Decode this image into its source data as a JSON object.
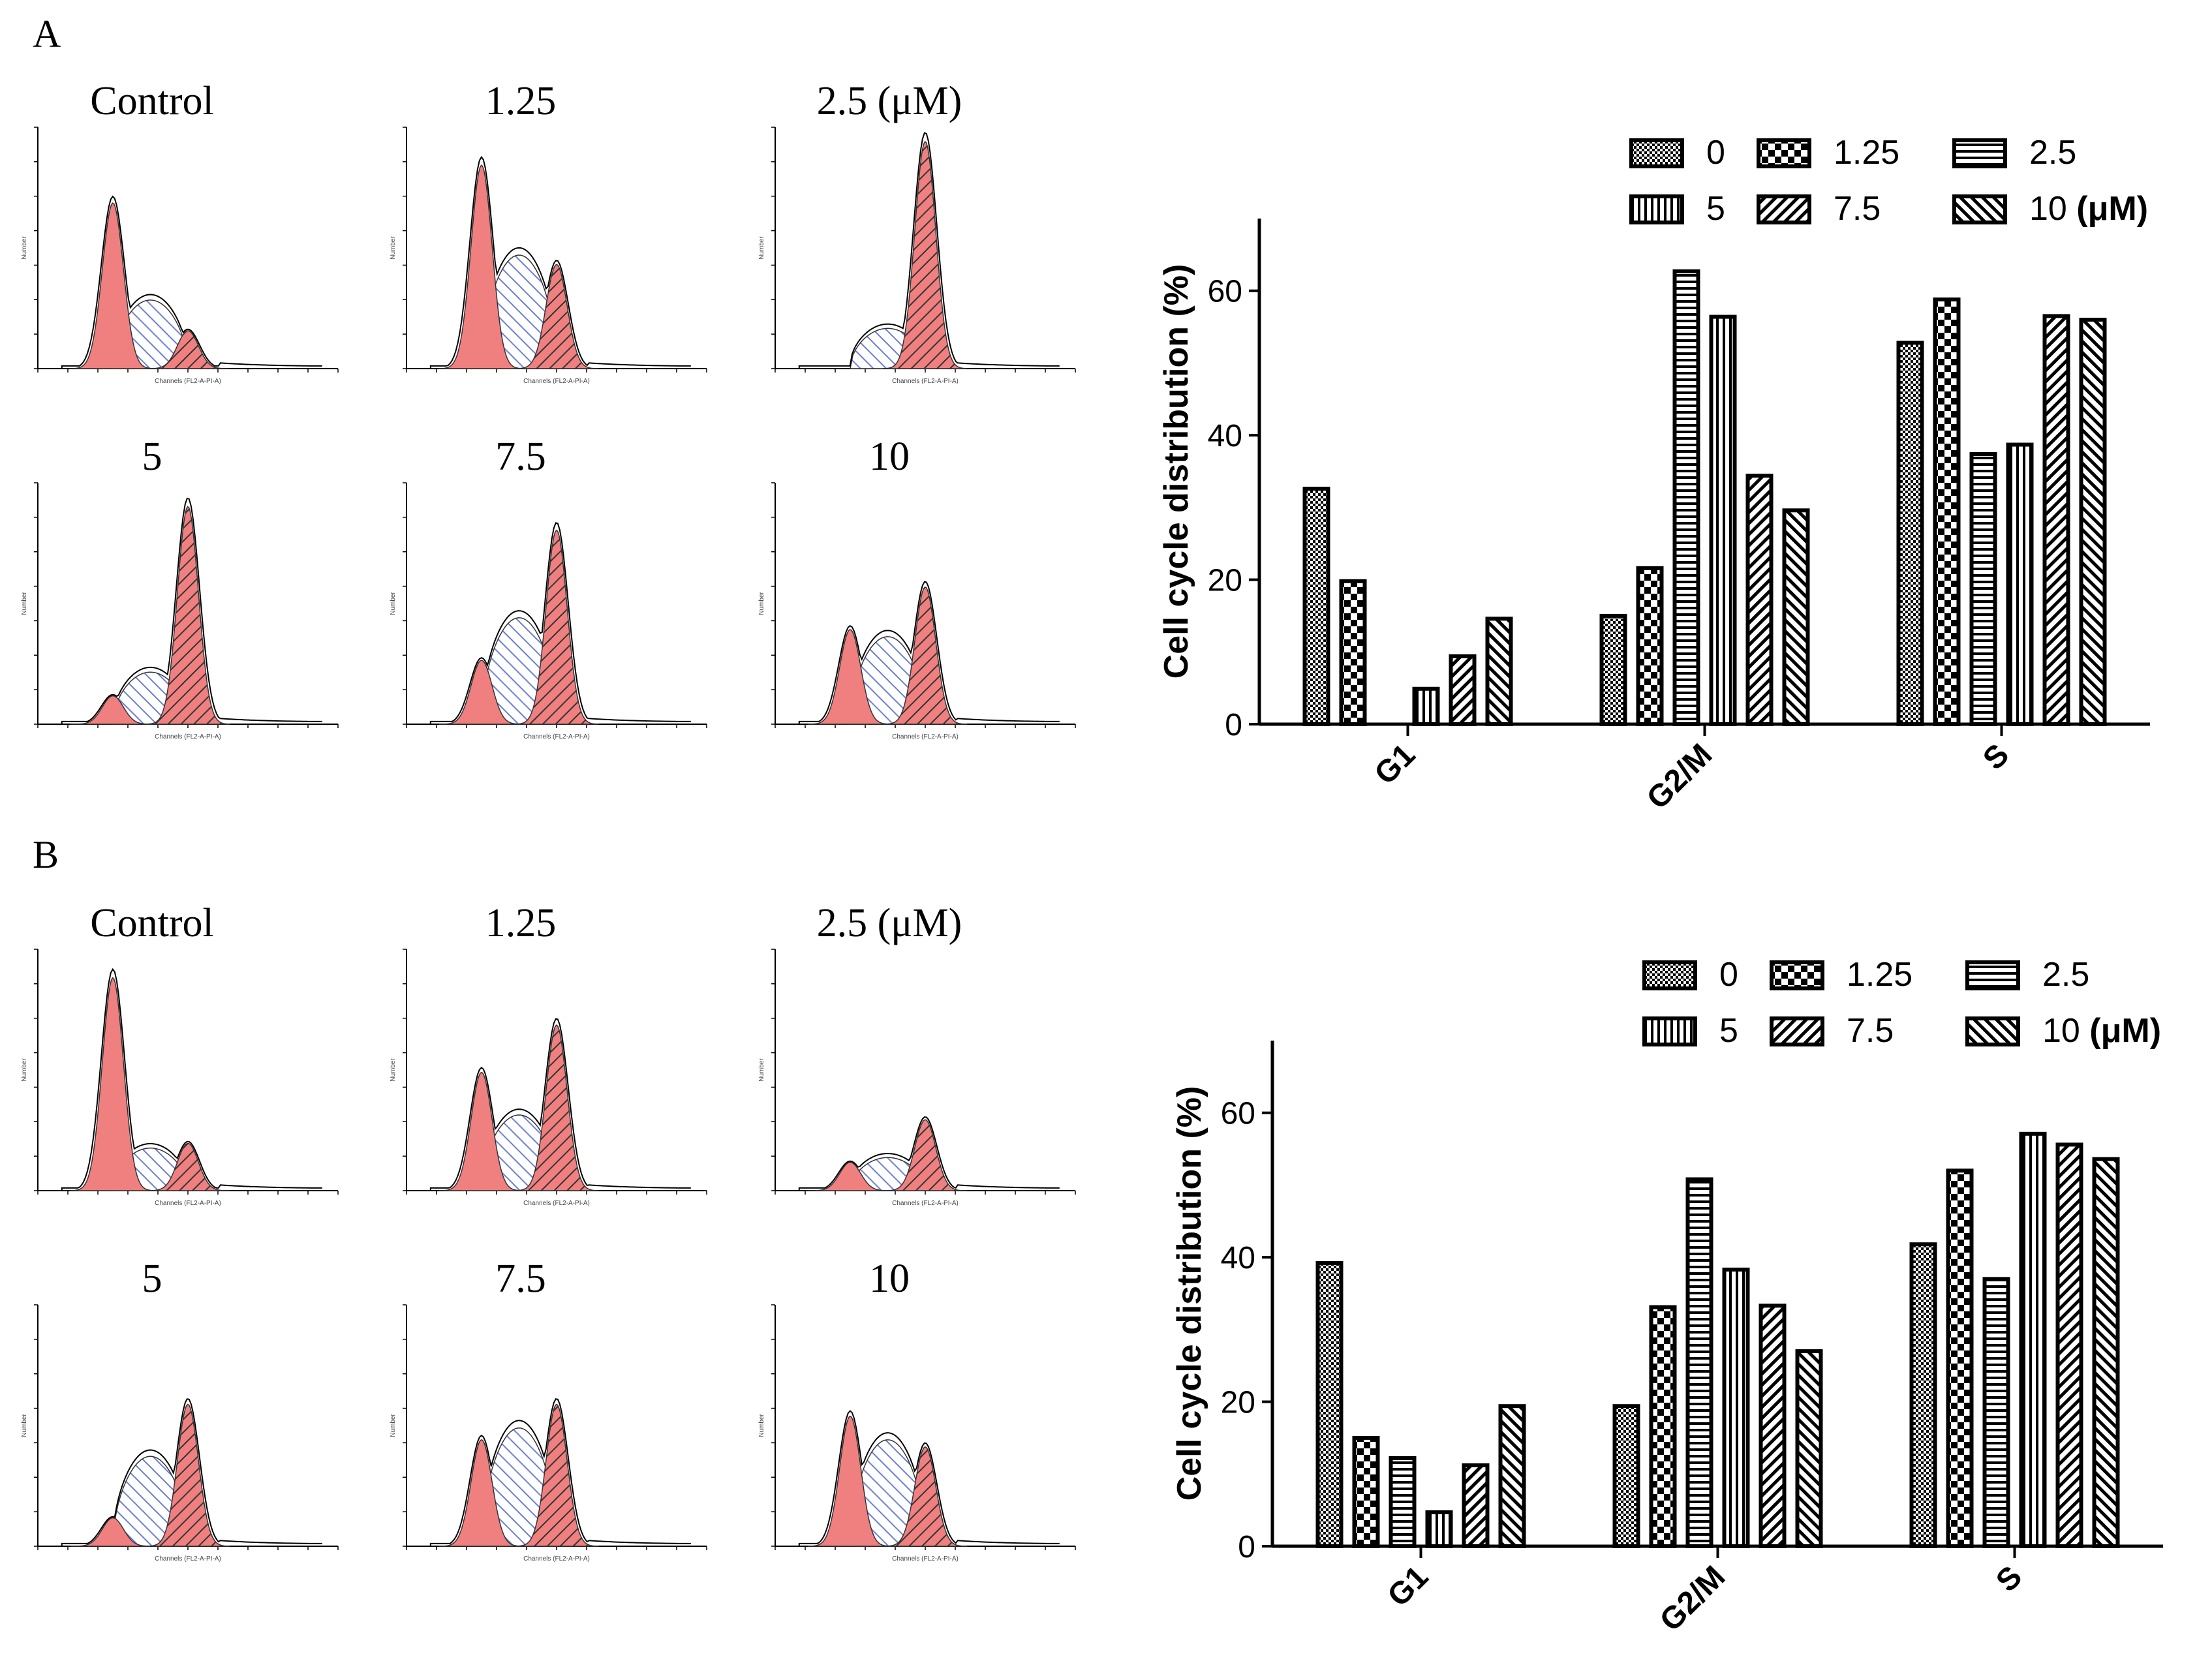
{
  "panels": [
    {
      "letter": "A",
      "histograms": [
        {
          "label": "Control",
          "g1_height": 0.7,
          "g2_height": 0.16,
          "s_height": 0.29
        },
        {
          "label": "1.25",
          "g1_height": 0.86,
          "g2_height": 0.44,
          "s_height": 0.48
        },
        {
          "label": "2.5 (μM)",
          "g1_height": 0.0,
          "g2_height": 0.96,
          "s_height": 0.17
        },
        {
          "label": "5",
          "g1_height": 0.12,
          "g2_height": 0.92,
          "s_height": 0.22
        },
        {
          "label": "7.5",
          "g1_height": 0.27,
          "g2_height": 0.82,
          "s_height": 0.45
        },
        {
          "label": "10",
          "g1_height": 0.4,
          "g2_height": 0.58,
          "s_height": 0.37
        }
      ],
      "histogram_axis_label": "Channels (FL2-A-PI-A)",
      "histogram_y_label": "Number",
      "chart_data": {
        "type": "bar",
        "title": "",
        "xlabel": "",
        "ylabel": "Cell cycle distribution (%)",
        "ylim": [
          0,
          70
        ],
        "yticks": [
          0,
          20,
          40,
          60
        ],
        "categories": [
          "G1",
          "G2/M",
          "S"
        ],
        "series": [
          {
            "name": "0",
            "pattern": "checker",
            "values": [
              32.6,
              15,
              52.8
            ]
          },
          {
            "name": "1.25",
            "pattern": "bigchecker",
            "values": [
              19.8,
              21.6,
              58.8
            ]
          },
          {
            "name": "2.5",
            "pattern": "hlines",
            "values": [
              0,
              62.7,
              37.4
            ]
          },
          {
            "name": "5",
            "pattern": "vlines",
            "values": [
              4.9,
              56.4,
              38.7
            ]
          },
          {
            "name": "7.5",
            "pattern": "diag",
            "values": [
              9.4,
              34.4,
              56.5
            ]
          },
          {
            "name": "10",
            "pattern": "antidiag",
            "values": [
              14.6,
              29.6,
              56
            ]
          }
        ],
        "legend_placement": "top-right",
        "legend_unit": "(μM)"
      }
    },
    {
      "letter": "B",
      "histograms": [
        {
          "label": "Control",
          "g1_height": 0.9,
          "g2_height": 0.2,
          "s_height": 0.18
        },
        {
          "label": "1.25",
          "g1_height": 0.5,
          "g2_height": 0.7,
          "s_height": 0.32
        },
        {
          "label": "2.5 (μM)",
          "g1_height": 0.12,
          "g2_height": 0.3,
          "s_height": 0.14
        },
        {
          "label": "5",
          "g1_height": 0.12,
          "g2_height": 0.6,
          "s_height": 0.38
        },
        {
          "label": "7.5",
          "g1_height": 0.45,
          "g2_height": 0.6,
          "s_height": 0.5
        },
        {
          "label": "10",
          "g1_height": 0.55,
          "g2_height": 0.42,
          "s_height": 0.45
        }
      ],
      "histogram_axis_label": "Channels (FL2-A-PI-A)",
      "histogram_y_label": "Number",
      "chart_data": {
        "type": "bar",
        "title": "",
        "xlabel": "",
        "ylabel": "Cell cycle distribution (%)",
        "ylim": [
          0,
          70
        ],
        "yticks": [
          0,
          20,
          40,
          60
        ],
        "categories": [
          "G1",
          "G2/M",
          "S"
        ],
        "series": [
          {
            "name": "0",
            "pattern": "checker",
            "values": [
              39.2,
              19.4,
              41.8
            ]
          },
          {
            "name": "1.25",
            "pattern": "bigchecker",
            "values": [
              15,
              33.1,
              52
            ]
          },
          {
            "name": "2.5",
            "pattern": "hlines",
            "values": [
              12.2,
              50.8,
              37
            ]
          },
          {
            "name": "5",
            "pattern": "vlines",
            "values": [
              4.7,
              38.3,
              57.1
            ]
          },
          {
            "name": "7.5",
            "pattern": "diag",
            "values": [
              11.2,
              33.3,
              55.6
            ]
          },
          {
            "name": "10",
            "pattern": "antidiag",
            "values": [
              19.4,
              27,
              53.6
            ]
          }
        ],
        "legend_placement": "top-right",
        "legend_unit": "(μM)"
      }
    }
  ]
}
